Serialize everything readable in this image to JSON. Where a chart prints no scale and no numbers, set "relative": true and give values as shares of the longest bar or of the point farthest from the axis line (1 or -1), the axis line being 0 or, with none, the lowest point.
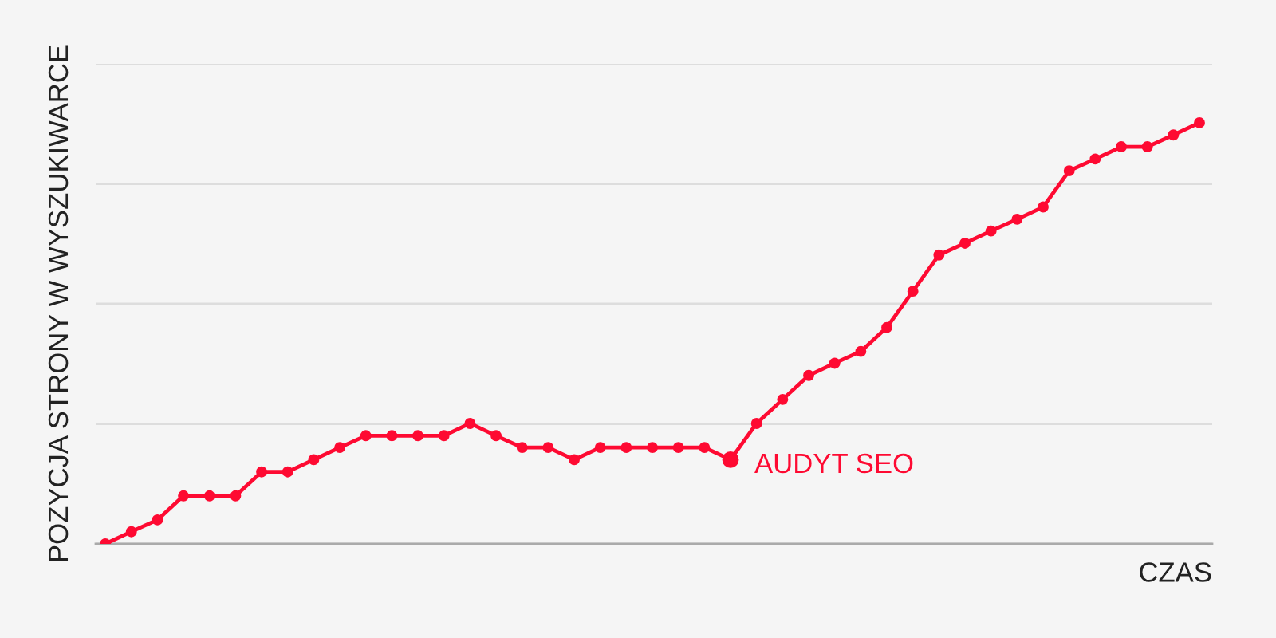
{
  "chart_data": {
    "type": "line",
    "relative": true,
    "xlabel": "CZAS",
    "ylabel": "POZYCJA STRONY W WYSZUKIWARCE",
    "categories": [
      null,
      null,
      null,
      null,
      null,
      null,
      null,
      null,
      null,
      null,
      null,
      null,
      null,
      null,
      null,
      null,
      null,
      null,
      null,
      null,
      null,
      null,
      null,
      null,
      null,
      null,
      null,
      null,
      null,
      null,
      null,
      null,
      null,
      null,
      null,
      null,
      null,
      null,
      null,
      null,
      null,
      null,
      null
    ],
    "series": [
      {
        "color": "#fe0a32",
        "values": [
          0,
          0.029,
          0.057,
          0.114,
          0.114,
          0.114,
          0.171,
          0.171,
          0.2,
          0.229,
          0.257,
          0.257,
          0.257,
          0.257,
          0.286,
          0.257,
          0.229,
          0.229,
          0.2,
          0.229,
          0.229,
          0.229,
          0.229,
          0.229,
          0.2,
          0.286,
          0.343,
          0.4,
          0.429,
          0.457,
          0.514,
          0.6,
          0.686,
          0.714,
          0.743,
          0.771,
          0.8,
          0.886,
          0.914,
          0.943,
          0.943,
          0.971,
          1
        ]
      }
    ],
    "annotations": [
      "AUDYT SEO"
    ],
    "marker": "circle",
    "line_style": "solid",
    "grid": "y",
    "tick_labels": false
  }
}
